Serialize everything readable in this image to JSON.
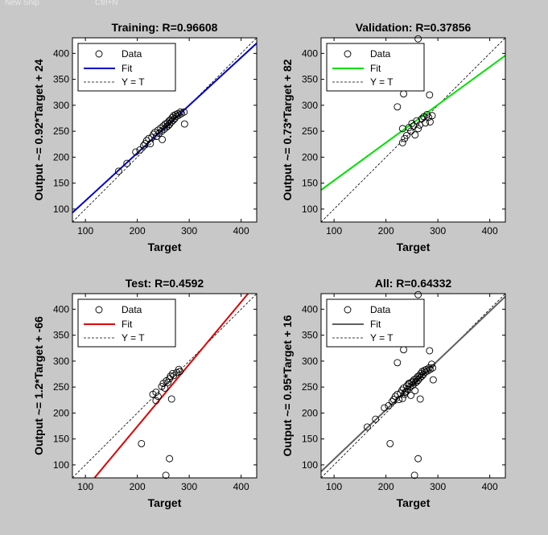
{
  "top_strip": {
    "left_text": "New Snip",
    "right_text": "Ctrl+N"
  },
  "legend_labels": {
    "data": "Data",
    "fit": "Fit",
    "yt": "Y = T"
  },
  "colors": {
    "background": "#c8c8c8",
    "axes_bg": "#ffffff",
    "ink": "#000000"
  },
  "chart_data": [
    {
      "type": "scatter",
      "title": "Training: R=0.96608",
      "xlabel": "Target",
      "ylabel": "Output ~= 0.92*Target + 24",
      "xlim": [
        75,
        430
      ],
      "ylim": [
        75,
        430
      ],
      "xticks": [
        100,
        200,
        300,
        400
      ],
      "yticks": [
        100,
        150,
        200,
        250,
        300,
        350,
        400
      ],
      "grid": false,
      "legend_position": "top-left",
      "fit": {
        "slope": 0.92,
        "intercept": 24,
        "color": "#0000cc"
      },
      "points": [
        [
          164,
          173
        ],
        [
          180,
          188
        ],
        [
          197,
          210
        ],
        [
          205,
          214
        ],
        [
          212,
          222
        ],
        [
          215,
          226
        ],
        [
          218,
          232
        ],
        [
          222,
          236
        ],
        [
          225,
          226
        ],
        [
          228,
          238
        ],
        [
          231,
          244
        ],
        [
          234,
          248
        ],
        [
          237,
          240
        ],
        [
          240,
          252
        ],
        [
          242,
          246
        ],
        [
          245,
          256
        ],
        [
          247,
          250
        ],
        [
          248,
          234
        ],
        [
          250,
          260
        ],
        [
          252,
          254
        ],
        [
          254,
          264
        ],
        [
          256,
          258
        ],
        [
          258,
          266
        ],
        [
          259,
          260
        ],
        [
          261,
          270
        ],
        [
          262,
          263
        ],
        [
          264,
          272
        ],
        [
          266,
          268
        ],
        [
          267,
          276
        ],
        [
          269,
          271
        ],
        [
          270,
          280
        ],
        [
          272,
          274
        ],
        [
          274,
          282
        ],
        [
          276,
          279
        ],
        [
          278,
          284
        ],
        [
          280,
          281
        ],
        [
          283,
          287
        ],
        [
          285,
          284
        ],
        [
          290,
          287
        ],
        [
          291,
          264
        ]
      ]
    },
    {
      "type": "scatter",
      "title": "Validation: R=0.37856",
      "xlabel": "Target",
      "ylabel": "Output ~= 0.73*Target + 82",
      "xlim": [
        75,
        430
      ],
      "ylim": [
        75,
        430
      ],
      "xticks": [
        100,
        200,
        300,
        400
      ],
      "yticks": [
        100,
        150,
        200,
        250,
        300,
        350,
        400
      ],
      "grid": false,
      "legend_position": "top-left",
      "fit": {
        "slope": 0.73,
        "intercept": 82,
        "color": "#00e000"
      },
      "points": [
        [
          262,
          428
        ],
        [
          222,
          297
        ],
        [
          234,
          322
        ],
        [
          284,
          320
        ],
        [
          232,
          228
        ],
        [
          236,
          236
        ],
        [
          232,
          255
        ],
        [
          240,
          242
        ],
        [
          244,
          257
        ],
        [
          248,
          250
        ],
        [
          250,
          265
        ],
        [
          253,
          260
        ],
        [
          256,
          243
        ],
        [
          259,
          270
        ],
        [
          262,
          255
        ],
        [
          265,
          262
        ],
        [
          269,
          274
        ],
        [
          273,
          278
        ],
        [
          276,
          266
        ],
        [
          279,
          282
        ],
        [
          282,
          277
        ],
        [
          285,
          268
        ],
        [
          289,
          280
        ]
      ]
    },
    {
      "type": "scatter",
      "title": "Test: R=0.4592",
      "xlabel": "Target",
      "ylabel": "Output ~= 1.2*Target + -66",
      "xlim": [
        75,
        430
      ],
      "ylim": [
        75,
        430
      ],
      "xticks": [
        100,
        200,
        300,
        400
      ],
      "yticks": [
        100,
        150,
        200,
        250,
        300,
        350,
        400
      ],
      "grid": false,
      "legend_position": "top-left",
      "fit": {
        "slope": 1.2,
        "intercept": -66,
        "color": "#dd0000"
      },
      "points": [
        [
          208,
          141
        ],
        [
          255,
          80
        ],
        [
          262,
          112
        ],
        [
          230,
          236
        ],
        [
          236,
          240
        ],
        [
          240,
          232
        ],
        [
          236,
          224
        ],
        [
          247,
          251
        ],
        [
          250,
          257
        ],
        [
          253,
          248
        ],
        [
          256,
          262
        ],
        [
          259,
          259
        ],
        [
          262,
          266
        ],
        [
          264,
          271
        ],
        [
          266,
          227
        ],
        [
          268,
          276
        ],
        [
          270,
          272
        ],
        [
          276,
          278
        ],
        [
          280,
          284
        ],
        [
          282,
          280
        ]
      ]
    },
    {
      "type": "scatter",
      "title": "All: R=0.64332",
      "xlabel": "Target",
      "ylabel": "Output ~= 0.95*Target + 16",
      "xlim": [
        75,
        430
      ],
      "ylim": [
        75,
        430
      ],
      "xticks": [
        100,
        200,
        300,
        400
      ],
      "yticks": [
        100,
        150,
        200,
        250,
        300,
        350,
        400
      ],
      "grid": false,
      "legend_position": "top-left",
      "fit": {
        "slope": 0.95,
        "intercept": 16,
        "color": "#606060"
      },
      "points": [
        [
          262,
          428
        ],
        [
          234,
          322
        ],
        [
          284,
          320
        ],
        [
          222,
          297
        ],
        [
          208,
          141
        ],
        [
          255,
          80
        ],
        [
          262,
          112
        ],
        [
          164,
          173
        ],
        [
          180,
          188
        ],
        [
          197,
          210
        ],
        [
          205,
          214
        ],
        [
          212,
          222
        ],
        [
          215,
          226
        ],
        [
          218,
          232
        ],
        [
          222,
          236
        ],
        [
          225,
          226
        ],
        [
          228,
          238
        ],
        [
          231,
          244
        ],
        [
          234,
          248
        ],
        [
          237,
          240
        ],
        [
          240,
          252
        ],
        [
          242,
          246
        ],
        [
          245,
          256
        ],
        [
          247,
          250
        ],
        [
          248,
          234
        ],
        [
          250,
          260
        ],
        [
          252,
          254
        ],
        [
          254,
          264
        ],
        [
          256,
          258
        ],
        [
          258,
          266
        ],
        [
          259,
          260
        ],
        [
          261,
          270
        ],
        [
          262,
          263
        ],
        [
          264,
          272
        ],
        [
          266,
          268
        ],
        [
          266,
          227
        ],
        [
          267,
          276
        ],
        [
          269,
          271
        ],
        [
          270,
          280
        ],
        [
          272,
          274
        ],
        [
          274,
          282
        ],
        [
          276,
          279
        ],
        [
          278,
          284
        ],
        [
          280,
          281
        ],
        [
          283,
          287
        ],
        [
          285,
          284
        ],
        [
          288,
          294
        ],
        [
          290,
          287
        ],
        [
          291,
          264
        ],
        [
          232,
          228
        ],
        [
          236,
          236
        ],
        [
          240,
          242
        ],
        [
          244,
          257
        ],
        [
          253,
          260
        ],
        [
          256,
          243
        ]
      ]
    }
  ]
}
